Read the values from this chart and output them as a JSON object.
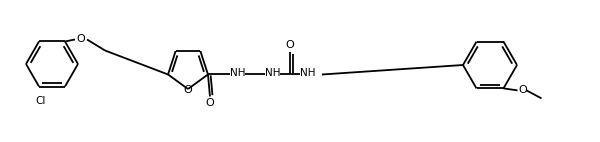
{
  "bg_color": "#ffffff",
  "line_color": "#000000",
  "lw": 1.3,
  "figsize": [
    6.0,
    1.42
  ],
  "dpi": 100,
  "xlim": [
    0,
    600
  ],
  "ylim": [
    0,
    142
  ]
}
